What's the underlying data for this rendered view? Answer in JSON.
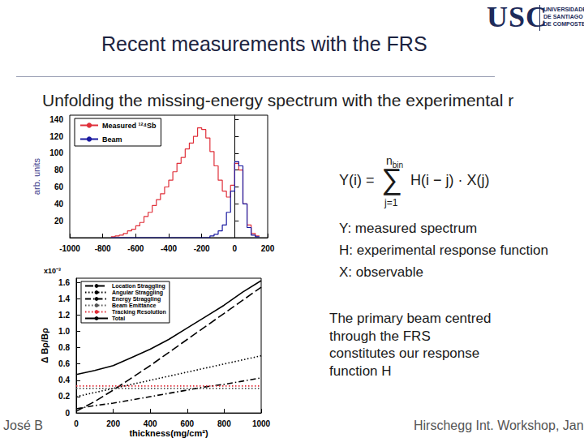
{
  "header": {
    "title": "Recent measurements with the FRS",
    "logo": "USC",
    "logo_sub": [
      "UNIVERSIDADE",
      "DE SANTIAGO",
      "DE COMPOSTELA"
    ]
  },
  "subtitle": "Unfolding the missing-energy spectrum with the experimental r",
  "chart_data": [
    {
      "type": "histogram",
      "ylabel": "arb. units",
      "bins": [
        -750,
        -725,
        -700,
        -675,
        -650,
        -625,
        -600,
        -575,
        -550,
        -525,
        -500,
        -475,
        -450,
        -425,
        -400,
        -375,
        -350,
        -325,
        -300,
        -275,
        -250,
        -225,
        -200,
        -175,
        -150,
        -125,
        -100,
        -75,
        -50,
        -25,
        0,
        25,
        50,
        75,
        100,
        125,
        150
      ],
      "series": [
        {
          "name": "Measured ¹²⁴Sb",
          "color": "#e0303a",
          "values": [
            1,
            2,
            3,
            5,
            8,
            10,
            14,
            18,
            25,
            30,
            38,
            45,
            52,
            60,
            68,
            78,
            88,
            95,
            105,
            112,
            120,
            130,
            128,
            118,
            102,
            85,
            68,
            55,
            48,
            62,
            88,
            80,
            40,
            15,
            5,
            2
          ]
        },
        {
          "name": "Beam",
          "color": "#1a1aa0",
          "values": [
            0,
            0,
            0,
            0,
            0,
            0,
            0,
            0,
            0,
            0,
            0,
            0,
            0,
            0,
            0,
            0,
            0,
            0,
            0,
            0,
            0,
            0,
            0,
            0,
            2,
            4,
            8,
            15,
            30,
            55,
            90,
            85,
            40,
            12,
            3,
            1
          ]
        }
      ],
      "xlim": [
        -1000,
        200
      ],
      "xticks": [
        -1000,
        -800,
        -600,
        -400,
        -200,
        0,
        200
      ],
      "ylim": [
        0,
        145
      ],
      "yticks": [
        20,
        40,
        60,
        80,
        100,
        120,
        140
      ],
      "grid": false,
      "legend": "upper left"
    },
    {
      "type": "line",
      "ylabel": "Δ Bρ/Bρ",
      "xlabel": "thickness(mg/cm²)",
      "annotations": [
        "x10⁻³"
      ],
      "x": [
        0,
        100,
        200,
        300,
        400,
        500,
        600,
        700,
        800,
        900,
        1000
      ],
      "series": [
        {
          "name": "Location Straggling",
          "color": "#000000",
          "line_style": "longdash",
          "values": [
            0.02,
            0.14,
            0.28,
            0.43,
            0.58,
            0.74,
            0.9,
            1.06,
            1.22,
            1.38,
            1.54
          ]
        },
        {
          "name": "Angular Straggling",
          "color": "#000000",
          "line_style": "dotted",
          "values": [
            0.2,
            0.25,
            0.3,
            0.35,
            0.4,
            0.45,
            0.5,
            0.55,
            0.6,
            0.65,
            0.7
          ]
        },
        {
          "name": "Energy Straggling",
          "color": "#000000",
          "line_style": "dashdot",
          "values": [
            0.05,
            0.09,
            0.12,
            0.16,
            0.2,
            0.24,
            0.28,
            0.32,
            0.35,
            0.39,
            0.43
          ]
        },
        {
          "name": "Beam Emittance",
          "color": "#555555",
          "line_style": "dotted",
          "values": [
            0.3,
            0.3,
            0.3,
            0.3,
            0.3,
            0.3,
            0.3,
            0.3,
            0.3,
            0.3,
            0.3
          ]
        },
        {
          "name": "Tracking Resolution",
          "color": "#e0303a",
          "line_style": "dotted",
          "values": [
            0.33,
            0.33,
            0.33,
            0.33,
            0.33,
            0.33,
            0.33,
            0.33,
            0.33,
            0.33,
            0.33
          ]
        },
        {
          "name": "Total",
          "color": "#000000",
          "line_style": "solid",
          "values": [
            0.47,
            0.52,
            0.58,
            0.68,
            0.78,
            0.9,
            1.04,
            1.18,
            1.32,
            1.48,
            1.62
          ]
        }
      ],
      "xlim": [
        0,
        1000
      ],
      "xticks": [
        0,
        200,
        400,
        600,
        800,
        1000
      ],
      "ylim": [
        0,
        1.65
      ],
      "yticks": [
        0,
        0.2,
        0.4,
        0.6,
        0.8,
        {
          "value": 1,
          "label": "1.0"
        },
        1.2,
        1.4,
        1.6
      ],
      "grid": false,
      "legend": "upper left"
    }
  ],
  "equation": {
    "lhs": "Y(i) =",
    "sum": "∑",
    "upper": "n",
    "upper_sub": "bin",
    "lower": "j=1",
    "rhs": "H(i − j) · X(j)"
  },
  "definitions": [
    "Y: measured spectrum",
    "H: experimental response function",
    "X: observable"
  ],
  "note": [
    "The primary beam centred",
    "through the FRS",
    "constitutes our response",
    "function H"
  ],
  "footer": {
    "left": "José B",
    "right": "Hirschegg Int. Workshop, Janua"
  }
}
